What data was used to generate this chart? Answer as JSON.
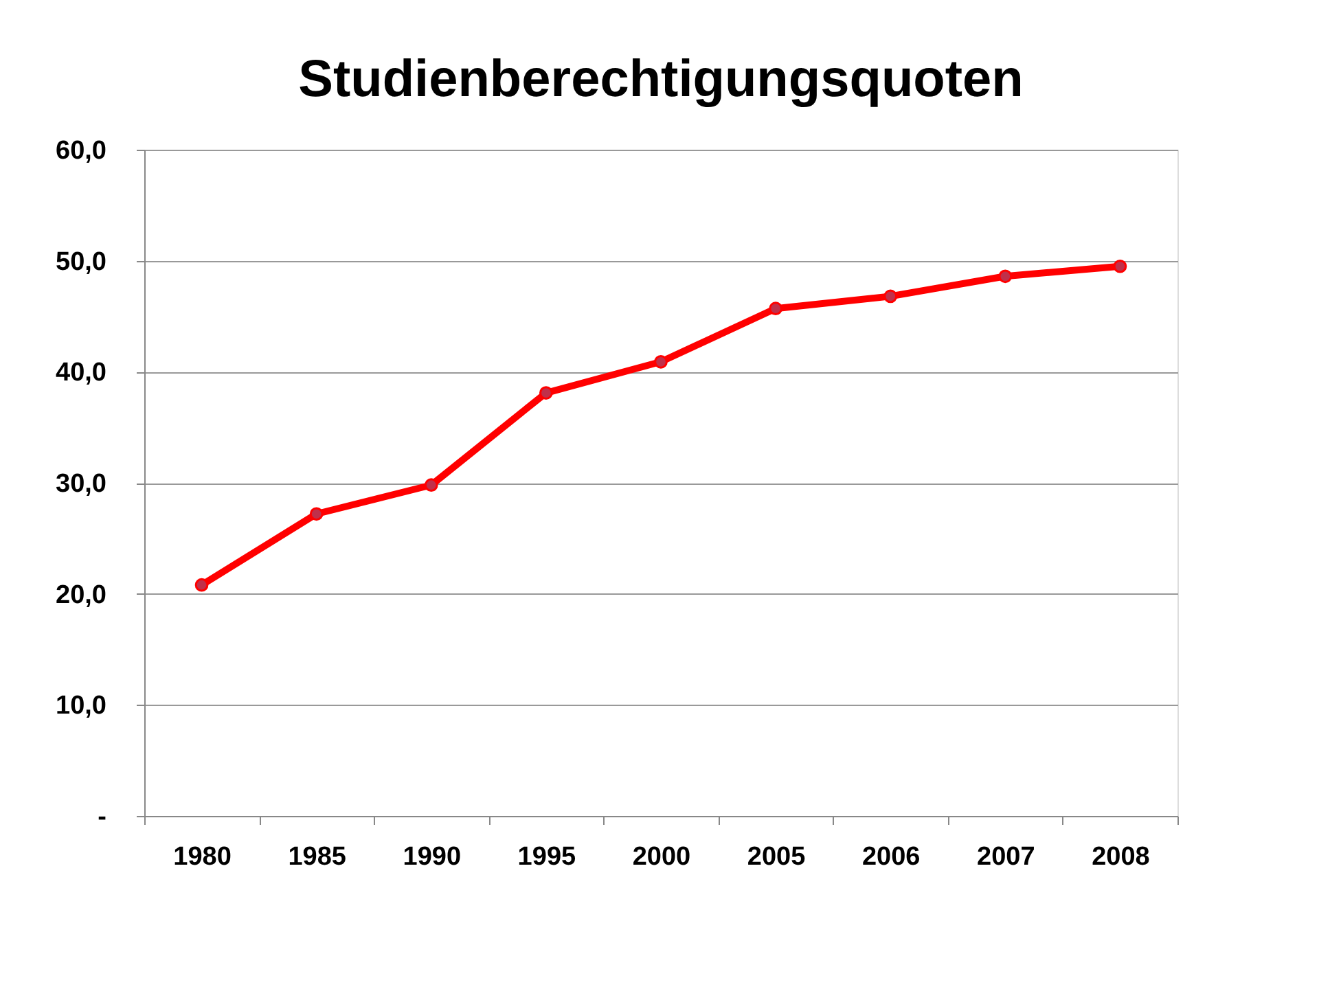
{
  "chart_data": {
    "type": "line",
    "title": "Studienberechtigungsquoten",
    "categories": [
      "1980",
      "1985",
      "1990",
      "1995",
      "2000",
      "2005",
      "2006",
      "2007",
      "2008"
    ],
    "series": [
      {
        "color": "#ff0000",
        "values": [
          20.8,
          27.2,
          29.8,
          38.1,
          40.9,
          45.7,
          46.8,
          48.6,
          49.5
        ]
      }
    ],
    "ylim": [
      0,
      60
    ],
    "yticks": [
      {
        "value": 0,
        "label": "-"
      },
      {
        "value": 10,
        "label": "10,0"
      },
      {
        "value": 20,
        "label": "20,0"
      },
      {
        "value": 30,
        "label": "30,0"
      },
      {
        "value": 40,
        "label": "40,0"
      },
      {
        "value": 50,
        "label": "50,0"
      },
      {
        "value": 60,
        "label": "60,0"
      }
    ],
    "grid": "y",
    "marker": "circle",
    "line_style": "solid"
  }
}
